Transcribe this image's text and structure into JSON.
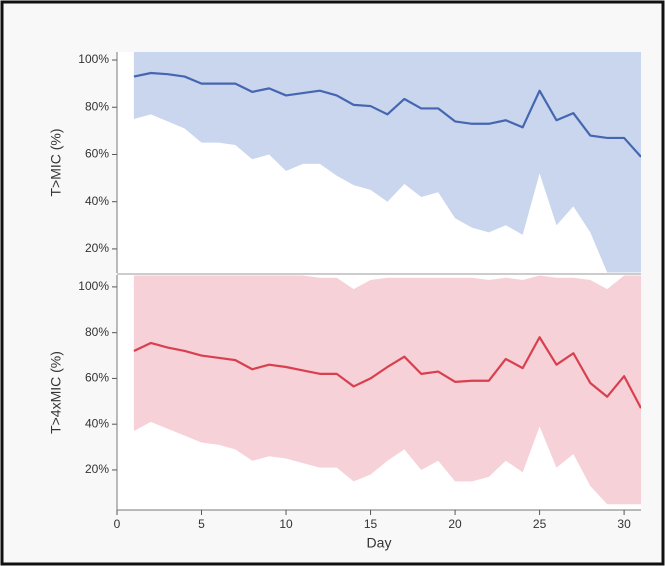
{
  "chart_data": [
    {
      "type": "line",
      "ylabel": "T>MIC (%)",
      "x": [
        1,
        2,
        3,
        4,
        5,
        6,
        7,
        8,
        9,
        10,
        11,
        12,
        13,
        14,
        15,
        16,
        17,
        18,
        19,
        20,
        21,
        22,
        23,
        24,
        25,
        26,
        27,
        28,
        29,
        30,
        31
      ],
      "xlim": [
        0,
        31
      ],
      "ylim": [
        9.8,
        103.4
      ],
      "yticks": [
        {
          "value": 20,
          "label": "20%"
        },
        {
          "value": 40,
          "label": "40%"
        },
        {
          "value": 60,
          "label": "60%"
        },
        {
          "value": 80,
          "label": "80%"
        },
        {
          "value": 100,
          "label": "100%"
        }
      ],
      "band": {
        "color": "#cad6ee",
        "upper": [
          105,
          105,
          105,
          105,
          105,
          105,
          105,
          105,
          105,
          105,
          105,
          105,
          105,
          105,
          105,
          105,
          105,
          105,
          105,
          105,
          105,
          105,
          105,
          105,
          105,
          105,
          105,
          105,
          105,
          105,
          105
        ],
        "lower": [
          75,
          77,
          74,
          71,
          65,
          65,
          64,
          58,
          60,
          53,
          56,
          56,
          51,
          47,
          45,
          40,
          47.5,
          42,
          44,
          33,
          29,
          27,
          30,
          26,
          52,
          30,
          38,
          27,
          10,
          10,
          10
        ]
      },
      "series": [
        {
          "color": "#4566b0",
          "values": [
            93,
            94.5,
            94,
            93,
            90,
            90,
            90,
            86.5,
            88,
            85,
            86,
            87,
            85,
            81,
            80.5,
            77,
            83.5,
            79.5,
            79.5,
            74,
            73,
            73,
            74.5,
            71.5,
            87,
            74.5,
            77.5,
            68,
            67,
            67,
            59
          ]
        }
      ]
    },
    {
      "type": "line",
      "ylabel": "T>4xMIC (%)",
      "xlabel": "Day",
      "x": [
        1,
        2,
        3,
        4,
        5,
        6,
        7,
        8,
        9,
        10,
        11,
        12,
        13,
        14,
        15,
        16,
        17,
        18,
        19,
        20,
        21,
        22,
        23,
        24,
        25,
        26,
        27,
        28,
        29,
        30,
        31
      ],
      "xlim": [
        0,
        31
      ],
      "ylim": [
        2.5,
        105.2
      ],
      "xticks": [
        0,
        5,
        10,
        15,
        20,
        25,
        30
      ],
      "yticks": [
        {
          "value": 20,
          "label": "20%"
        },
        {
          "value": 40,
          "label": "40%"
        },
        {
          "value": 60,
          "label": "60%"
        },
        {
          "value": 80,
          "label": "80%"
        },
        {
          "value": 100,
          "label": "100%"
        }
      ],
      "band": {
        "color": "#f6d1d7",
        "upper": [
          105,
          105,
          105,
          105,
          105,
          105,
          105,
          105,
          105,
          105,
          105,
          104,
          104,
          99,
          103,
          104,
          104,
          104,
          104,
          104,
          104,
          103,
          104,
          103,
          105,
          104,
          104,
          103,
          99,
          105,
          105
        ],
        "lower": [
          37,
          41,
          38,
          35,
          32,
          31,
          29,
          24,
          26,
          25,
          23,
          21,
          21,
          15,
          18,
          24,
          29,
          20,
          24,
          15,
          15,
          17,
          24,
          19,
          39,
          21,
          27,
          13,
          5,
          5,
          5
        ]
      },
      "series": [
        {
          "color": "#d8404f",
          "values": [
            72,
            75.5,
            73.5,
            72,
            70,
            69,
            68,
            64,
            66,
            65,
            63.5,
            62,
            62,
            56.5,
            60,
            65,
            69.5,
            62,
            63,
            58.5,
            59,
            59,
            68.5,
            64.5,
            78,
            66,
            71,
            58,
            52,
            61,
            47
          ]
        }
      ]
    }
  ]
}
